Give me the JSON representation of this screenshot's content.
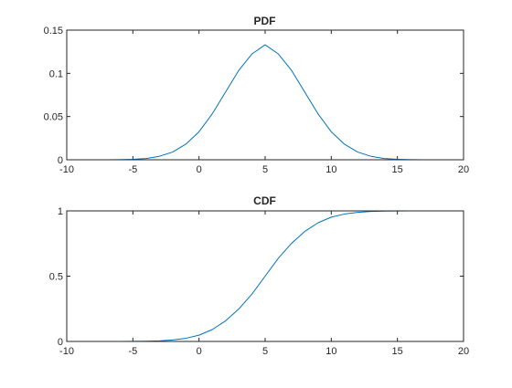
{
  "chart_data": [
    {
      "type": "line",
      "title": "PDF",
      "xlabel": "",
      "ylabel": "",
      "xlim": [
        -10,
        20
      ],
      "ylim": [
        0,
        0.15
      ],
      "xticks": [
        -10,
        -5,
        0,
        5,
        10,
        15,
        20
      ],
      "yticks": [
        0,
        0.05,
        0.1,
        0.15
      ],
      "xtick_labels": [
        "-10",
        "-5",
        "0",
        "5",
        "10",
        "15",
        "20"
      ],
      "ytick_labels": [
        "0",
        "0.05",
        "0.1",
        "0.15"
      ],
      "grid": false,
      "series": [
        {
          "color": "#0072BD",
          "x": [
            -10,
            -9,
            -8,
            -7,
            -6,
            -5,
            -4,
            -3,
            -2,
            -1,
            0,
            1,
            2,
            3,
            4,
            5,
            6,
            7,
            8,
            9,
            10,
            11,
            12,
            13,
            14,
            15,
            16,
            17,
            18,
            19,
            20
          ],
          "y": [
            0.0,
            0.0,
            0.0,
            0.0,
            0.0001,
            0.0005,
            0.0015,
            0.004,
            0.0089,
            0.018,
            0.0324,
            0.0531,
            0.0782,
            0.1033,
            0.1224,
            0.133,
            0.1224,
            0.1033,
            0.0782,
            0.0531,
            0.0324,
            0.018,
            0.0089,
            0.004,
            0.0015,
            0.0005,
            0.0001,
            0.0,
            0.0,
            0.0,
            0.0
          ]
        }
      ]
    },
    {
      "type": "line",
      "title": "CDF",
      "xlabel": "",
      "ylabel": "",
      "xlim": [
        -10,
        20
      ],
      "ylim": [
        0,
        1
      ],
      "xticks": [
        -10,
        -5,
        0,
        5,
        10,
        15,
        20
      ],
      "yticks": [
        0,
        0.5,
        1
      ],
      "xtick_labels": [
        "-10",
        "-5",
        "0",
        "5",
        "10",
        "15",
        "20"
      ],
      "ytick_labels": [
        "0",
        "0.5",
        "1"
      ],
      "grid": false,
      "series": [
        {
          "color": "#0072BD",
          "x": [
            -10,
            -9,
            -8,
            -7,
            -6,
            -5,
            -4,
            -3,
            -2,
            -1,
            0,
            1,
            2,
            3,
            4,
            5,
            6,
            7,
            8,
            9,
            10,
            11,
            12,
            13,
            14,
            15,
            16,
            17,
            18,
            19
          ],
          "y": [
            0.0,
            0.0,
            0.0,
            0.0,
            0.0,
            0.001,
            0.002,
            0.004,
            0.011,
            0.024,
            0.048,
            0.091,
            0.157,
            0.248,
            0.362,
            0.5,
            0.638,
            0.752,
            0.843,
            0.909,
            0.952,
            0.976,
            0.989,
            0.996,
            0.998,
            0.999,
            1.0,
            1.0,
            1.0,
            1.0
          ]
        }
      ]
    }
  ]
}
